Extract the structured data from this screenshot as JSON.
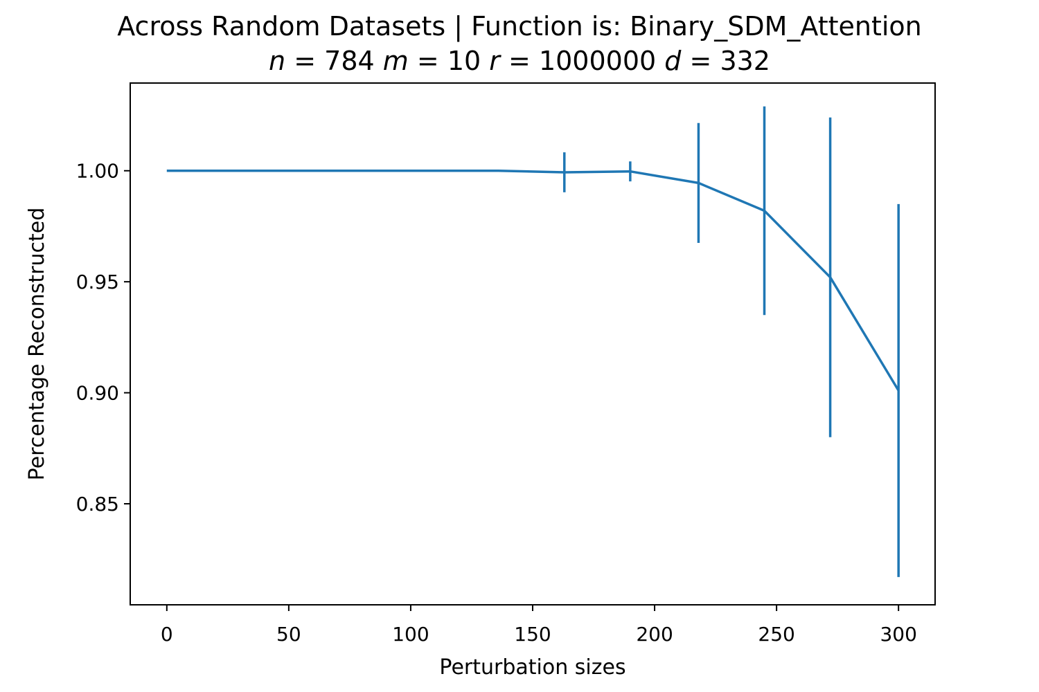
{
  "chart_data": {
    "type": "line",
    "title": "Across Random Datasets | Function is: Binary_SDM_Attention",
    "subtitle": {
      "n_label": "n",
      "n_value": "784",
      "m_label": "m",
      "m_value": "10",
      "r_label": "r",
      "r_value": "1000000",
      "d_label": "d",
      "d_value": "332",
      "equals": "="
    },
    "xlabel": "Perturbation sizes",
    "ylabel": "Percentage Reconstructed",
    "xlim": [
      -15,
      315
    ],
    "ylim": [
      0.8045,
      1.0395
    ],
    "xticks": [
      0,
      50,
      100,
      150,
      200,
      250,
      300
    ],
    "xtick_labels": [
      "0",
      "50",
      "100",
      "150",
      "200",
      "250",
      "300"
    ],
    "yticks": [
      0.85,
      0.9,
      0.95,
      1.0
    ],
    "ytick_labels": [
      "0.85",
      "0.90",
      "0.95",
      "1.00"
    ],
    "grid": false,
    "series": [
      {
        "color": "#1f77b4",
        "points": [
          {
            "x": 0,
            "y": 1.0,
            "err": 0.0
          },
          {
            "x": 27,
            "y": 1.0,
            "err": 0.0
          },
          {
            "x": 54,
            "y": 1.0,
            "err": 0.0
          },
          {
            "x": 81,
            "y": 1.0,
            "err": 0.0
          },
          {
            "x": 109,
            "y": 1.0,
            "err": 0.0
          },
          {
            "x": 136,
            "y": 1.0,
            "err": 0.0
          },
          {
            "x": 163,
            "y": 0.9993,
            "err": 0.009
          },
          {
            "x": 190,
            "y": 0.9997,
            "err": 0.0045
          },
          {
            "x": 218,
            "y": 0.9945,
            "err": 0.027
          },
          {
            "x": 245,
            "y": 0.982,
            "err": 0.047
          },
          {
            "x": 272,
            "y": 0.952,
            "err": 0.072
          },
          {
            "x": 300,
            "y": 0.901,
            "err": 0.084
          }
        ]
      }
    ]
  }
}
